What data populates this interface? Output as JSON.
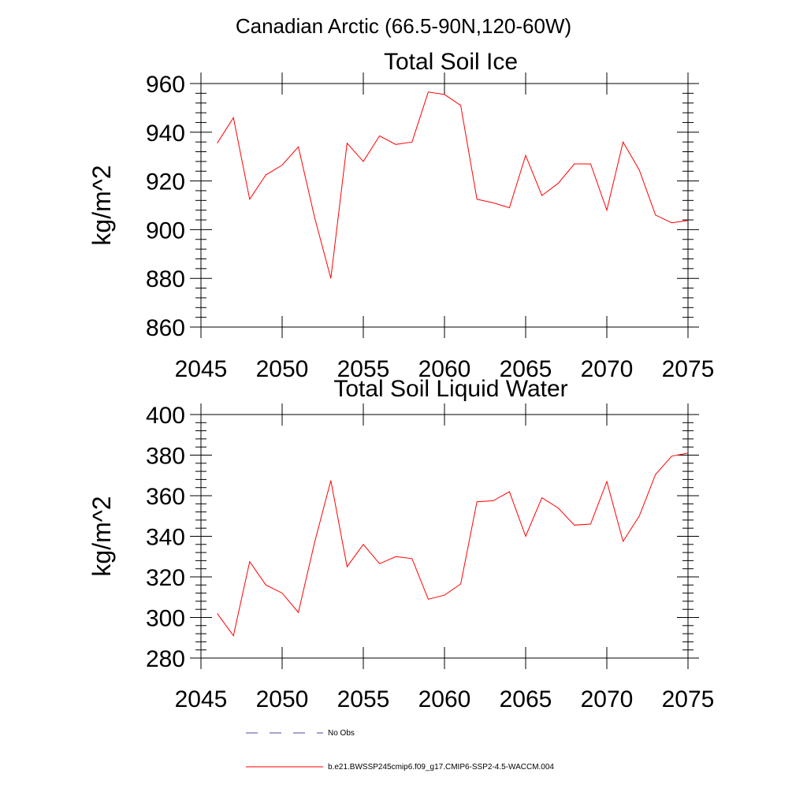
{
  "figure": {
    "suptitle": "Canadian Arctic (66.5-90N,120-60W)"
  },
  "chart_data": [
    {
      "type": "line",
      "title": "Total Soil Ice",
      "xlabel": "",
      "ylabel": "kg/m^2",
      "xlim": [
        2045,
        2075
      ],
      "ylim": [
        860,
        960
      ],
      "xticks": [
        2045,
        2050,
        2055,
        2060,
        2065,
        2070,
        2075
      ],
      "yticks": [
        860,
        880,
        900,
        920,
        940,
        960
      ],
      "series": [
        {
          "name": "b.e21.BWSSP245cmip6.f09_g17.CMIP6-SSP2-4.5-WACCM.004",
          "color": "#ff0000",
          "x": [
            2046,
            2047,
            2048,
            2049,
            2050,
            2051,
            2052,
            2053,
            2054,
            2055,
            2056,
            2057,
            2058,
            2059,
            2060,
            2061,
            2062,
            2063,
            2064,
            2065,
            2066,
            2067,
            2068,
            2069,
            2070,
            2071,
            2072,
            2073,
            2074,
            2075
          ],
          "values": [
            935.5,
            946,
            912.5,
            922.5,
            926.5,
            934,
            905,
            880,
            935.5,
            928,
            938.5,
            935,
            936,
            956.5,
            955.5,
            951,
            912.5,
            911,
            909,
            930.5,
            914,
            919,
            927,
            927,
            908,
            936,
            924.5,
            906,
            902.8,
            903.8
          ]
        }
      ]
    },
    {
      "type": "line",
      "title": "Total Soil Liquid Water",
      "xlabel": "",
      "ylabel": "kg/m^2",
      "xlim": [
        2045,
        2075
      ],
      "ylim": [
        280,
        400
      ],
      "xticks": [
        2045,
        2050,
        2055,
        2060,
        2065,
        2070,
        2075
      ],
      "yticks": [
        280,
        300,
        320,
        340,
        360,
        380,
        400
      ],
      "series": [
        {
          "name": "b.e21.BWSSP245cmip6.f09_g17.CMIP6-SSP2-4.5-WACCM.004",
          "color": "#ff0000",
          "x": [
            2046,
            2047,
            2048,
            2049,
            2050,
            2051,
            2052,
            2053,
            2054,
            2055,
            2056,
            2057,
            2058,
            2059,
            2060,
            2061,
            2062,
            2063,
            2064,
            2065,
            2066,
            2067,
            2068,
            2069,
            2070,
            2071,
            2072,
            2073,
            2074,
            2075
          ],
          "values": [
            302,
            291,
            327.5,
            316,
            312,
            302.5,
            337,
            367.5,
            325,
            336,
            326.5,
            330,
            329,
            309,
            311,
            316.5,
            357,
            357.5,
            362,
            340,
            359,
            354,
            345.5,
            346,
            367,
            337.5,
            350,
            370.5,
            379.5,
            381
          ]
        }
      ]
    }
  ],
  "legend": {
    "entries": [
      {
        "label": "No Obs",
        "color": "#4a4aa0",
        "style": "dashed"
      },
      {
        "label": "b.e21.BWSSP245cmip6.f09_g17.CMIP6-SSP2-4.5-WACCM.004",
        "color": "#ff0000",
        "style": "solid"
      }
    ]
  }
}
